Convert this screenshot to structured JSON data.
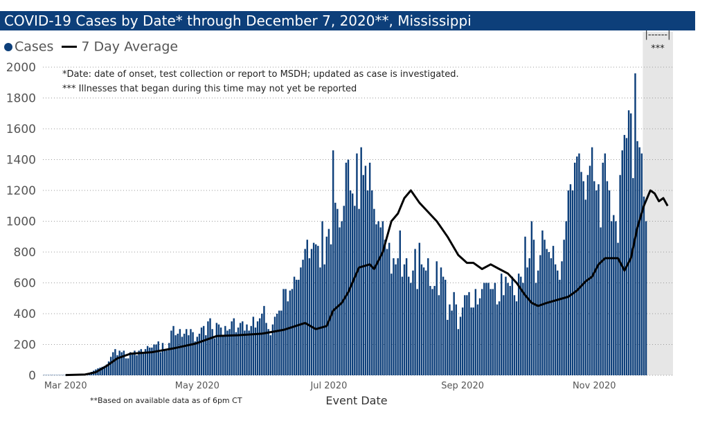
{
  "chart_data": {
    "type": "bar",
    "title": "COVID-19 Cases by Date* through December 7, 2020**, Mississippi",
    "xlabel": "Event Date",
    "ylabel": "",
    "ylim": [
      0,
      2000
    ],
    "yticks": [
      "0",
      "200",
      "400",
      "600",
      "800",
      "1000",
      "1200",
      "1400",
      "1600",
      "1800",
      "2000"
    ],
    "xticks": [
      "Mar 2020",
      "May 2020",
      "Jul 2020",
      "Sep 2020",
      "Nov 2020"
    ],
    "legend": [
      "Cases",
      "7 Day Average"
    ],
    "legend_position": "top-left",
    "grid": "horizontal dotted",
    "date_start": "2020-02-20",
    "date_end": "2020-12-07",
    "series": [
      {
        "name": "Cases",
        "kind": "bar",
        "color": "#0d3f7a",
        "values": [
          2,
          2,
          2,
          2,
          2,
          2,
          2,
          2,
          2,
          2,
          2,
          2,
          2,
          2,
          2,
          2,
          3,
          4,
          5,
          7,
          10,
          15,
          22,
          30,
          38,
          45,
          50,
          55,
          60,
          70,
          90,
          120,
          150,
          170,
          130,
          160,
          150,
          160,
          110,
          110,
          150,
          140,
          160,
          130,
          160,
          170,
          150,
          170,
          190,
          180,
          180,
          200,
          200,
          220,
          150,
          210,
          170,
          160,
          210,
          290,
          320,
          260,
          270,
          300,
          250,
          270,
          300,
          260,
          300,
          280,
          220,
          250,
          270,
          310,
          320,
          260,
          350,
          370,
          300,
          240,
          340,
          330,
          310,
          260,
          320,
          290,
          300,
          350,
          370,
          280,
          310,
          340,
          350,
          290,
          330,
          290,
          320,
          380,
          310,
          350,
          370,
          400,
          450,
          340,
          300,
          260,
          330,
          380,
          400,
          420,
          420,
          560,
          560,
          480,
          550,
          560,
          640,
          620,
          620,
          700,
          750,
          820,
          880,
          760,
          820,
          860,
          850,
          840,
          700,
          1000,
          720,
          900,
          950,
          850,
          1460,
          1120,
          1080,
          960,
          1000,
          1100,
          1380,
          1400,
          1200,
          1180,
          1100,
          1440,
          1080,
          1480,
          1300,
          1360,
          1200,
          1380,
          1200,
          1080,
          980,
          1000,
          960,
          1000,
          880,
          820,
          860,
          660,
          760,
          720,
          760,
          940,
          640,
          720,
          760,
          640,
          600,
          680,
          820,
          560,
          860,
          720,
          700,
          680,
          760,
          580,
          560,
          580,
          740,
          520,
          700,
          640,
          620,
          360,
          460,
          420,
          540,
          460,
          300,
          380,
          440,
          520,
          520,
          540,
          440,
          440,
          560,
          460,
          500,
          560,
          600,
          600,
          600,
          560,
          560,
          600,
          460,
          480,
          660,
          520,
          640,
          600,
          580,
          640,
          520,
          480,
          660,
          640,
          600,
          900,
          700,
          760,
          1000,
          880,
          600,
          680,
          780,
          940,
          880,
          820,
          800,
          760,
          840,
          720,
          680,
          620,
          740,
          880,
          1000,
          1200,
          1240,
          1200,
          1380,
          1420,
          1440,
          1320,
          1260,
          1140,
          1300,
          1360,
          1480,
          1260,
          1200,
          1240,
          960,
          1380,
          1440,
          1260,
          1200,
          1000,
          1040,
          1000,
          860,
          1300,
          1460,
          1560,
          1540,
          1720,
          1700,
          1280,
          1960,
          1520,
          1480,
          1440,
          1160,
          1000
        ]
      },
      {
        "name": "7 Day Average",
        "kind": "line",
        "color": "#000000",
        "points": [
          [
            "2020-03-01",
            2
          ],
          [
            "2020-03-10",
            5
          ],
          [
            "2020-03-15",
            20
          ],
          [
            "2020-03-20",
            60
          ],
          [
            "2020-03-25",
            110
          ],
          [
            "2020-03-31",
            140
          ],
          [
            "2020-04-10",
            150
          ],
          [
            "2020-04-20",
            175
          ],
          [
            "2020-04-30",
            205
          ],
          [
            "2020-05-10",
            255
          ],
          [
            "2020-05-20",
            260
          ],
          [
            "2020-05-31",
            270
          ],
          [
            "2020-06-10",
            295
          ],
          [
            "2020-06-20",
            340
          ],
          [
            "2020-06-25",
            300
          ],
          [
            "2020-06-30",
            320
          ],
          [
            "2020-07-03",
            420
          ],
          [
            "2020-07-07",
            470
          ],
          [
            "2020-07-10",
            540
          ],
          [
            "2020-07-15",
            700
          ],
          [
            "2020-07-20",
            720
          ],
          [
            "2020-07-22",
            690
          ],
          [
            "2020-07-26",
            800
          ],
          [
            "2020-07-30",
            1000
          ],
          [
            "2020-08-02",
            1050
          ],
          [
            "2020-08-05",
            1150
          ],
          [
            "2020-08-08",
            1200
          ],
          [
            "2020-08-12",
            1120
          ],
          [
            "2020-08-16",
            1060
          ],
          [
            "2020-08-20",
            1000
          ],
          [
            "2020-08-25",
            900
          ],
          [
            "2020-08-30",
            780
          ],
          [
            "2020-09-03",
            730
          ],
          [
            "2020-09-06",
            730
          ],
          [
            "2020-09-10",
            690
          ],
          [
            "2020-09-14",
            720
          ],
          [
            "2020-09-18",
            690
          ],
          [
            "2020-09-22",
            660
          ],
          [
            "2020-09-26",
            600
          ],
          [
            "2020-09-30",
            520
          ],
          [
            "2020-10-03",
            470
          ],
          [
            "2020-10-06",
            450
          ],
          [
            "2020-10-10",
            470
          ],
          [
            "2020-10-15",
            490
          ],
          [
            "2020-10-20",
            510
          ],
          [
            "2020-10-24",
            550
          ],
          [
            "2020-10-28",
            610
          ],
          [
            "2020-10-31",
            640
          ],
          [
            "2020-11-03",
            720
          ],
          [
            "2020-11-06",
            760
          ],
          [
            "2020-11-09",
            760
          ],
          [
            "2020-11-12",
            760
          ],
          [
            "2020-11-15",
            680
          ],
          [
            "2020-11-18",
            760
          ],
          [
            "2020-11-21",
            960
          ],
          [
            "2020-11-24",
            1100
          ],
          [
            "2020-11-27",
            1200
          ],
          [
            "2020-11-29",
            1180
          ],
          [
            "2020-12-01",
            1130
          ],
          [
            "2020-12-03",
            1150
          ],
          [
            "2020-12-05",
            1100
          ]
        ]
      }
    ],
    "annotations": {
      "notes": [
        "*Date: date of onset, test collection or report to MSDH; updated as case is investigated.",
        "*** Illnesses that began during this time may not yet be reported"
      ],
      "shaded_bracket": "|------|",
      "shaded_label": "***",
      "shaded_start": "2020-11-24",
      "shaded_end": "2020-12-07",
      "footnote": "**Based on available data as of 6pm CT"
    }
  }
}
